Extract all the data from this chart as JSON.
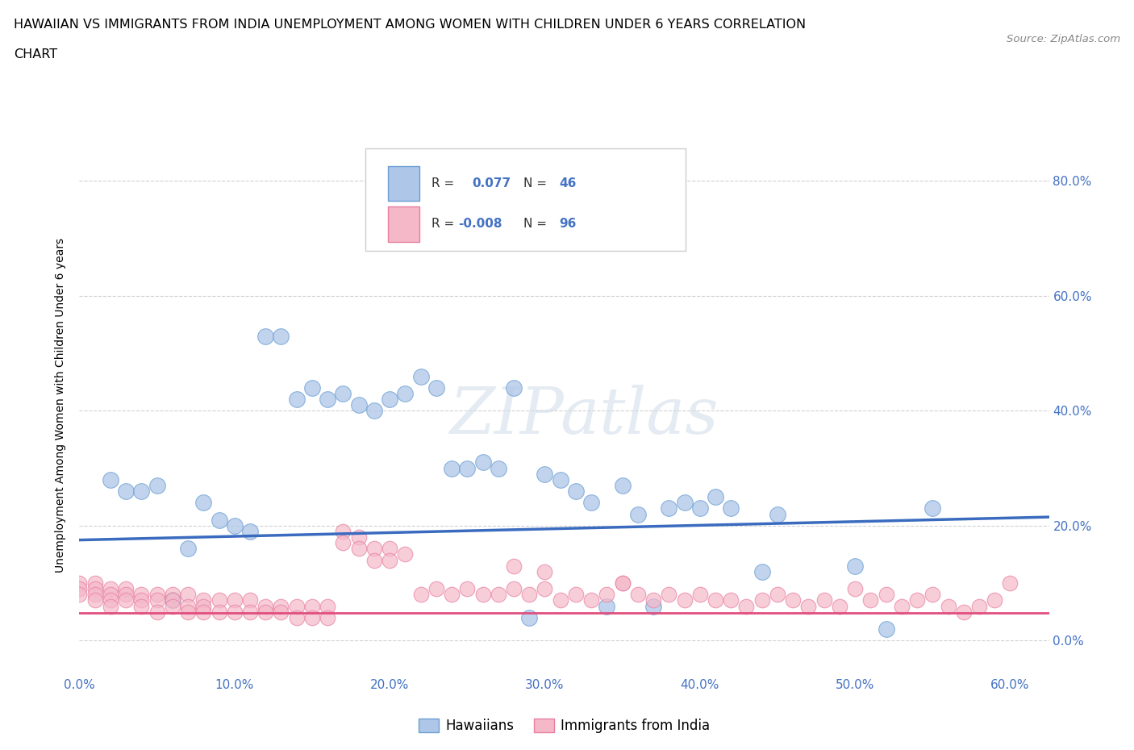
{
  "title_line1": "HAWAIIAN VS IMMIGRANTS FROM INDIA UNEMPLOYMENT AMONG WOMEN WITH CHILDREN UNDER 6 YEARS CORRELATION",
  "title_line2": "CHART",
  "source": "Source: ZipAtlas.com",
  "xlabel_ticks": [
    "0.0%",
    "10.0%",
    "20.0%",
    "30.0%",
    "40.0%",
    "50.0%",
    "60.0%"
  ],
  "ylabel": "Unemployment Among Women with Children Under 6 years",
  "ylabel_ticks": [
    "0.0%",
    "20.0%",
    "40.0%",
    "60.0%",
    "80.0%"
  ],
  "xmin": 0.0,
  "xmax": 0.625,
  "ymin": -0.06,
  "ymax": 0.88,
  "hawaiian_R": 0.077,
  "hawaiian_N": 46,
  "india_R": -0.008,
  "india_N": 96,
  "hawaiian_color": "#aec6e8",
  "india_color": "#f4b8c8",
  "hawaiian_edge_color": "#6b9fd4",
  "india_edge_color": "#e87fa0",
  "hawaiian_line_color": "#3a6bbf",
  "india_line_color": "#e05080",
  "hawaiian_line_y0": 0.175,
  "hawaiian_line_y1": 0.215,
  "india_line_y0": 0.048,
  "india_line_y1": 0.048,
  "watermark": "ZIPatlas",
  "hawaiian_x": [
    0.02,
    0.03,
    0.04,
    0.05,
    0.06,
    0.07,
    0.08,
    0.09,
    0.1,
    0.11,
    0.12,
    0.13,
    0.14,
    0.15,
    0.16,
    0.17,
    0.18,
    0.19,
    0.2,
    0.21,
    0.22,
    0.23,
    0.24,
    0.25,
    0.26,
    0.27,
    0.28,
    0.3,
    0.31,
    0.32,
    0.33,
    0.34,
    0.35,
    0.38,
    0.39,
    0.4,
    0.45,
    0.5,
    0.52,
    0.55,
    0.36,
    0.37,
    0.42,
    0.44,
    0.29,
    0.41
  ],
  "hawaiian_y": [
    0.28,
    0.26,
    0.26,
    0.27,
    0.07,
    0.16,
    0.24,
    0.21,
    0.2,
    0.19,
    0.53,
    0.53,
    0.42,
    0.44,
    0.42,
    0.43,
    0.41,
    0.4,
    0.42,
    0.43,
    0.46,
    0.44,
    0.3,
    0.3,
    0.31,
    0.3,
    0.44,
    0.29,
    0.28,
    0.26,
    0.24,
    0.06,
    0.27,
    0.23,
    0.24,
    0.23,
    0.22,
    0.13,
    0.02,
    0.23,
    0.22,
    0.06,
    0.23,
    0.12,
    0.04,
    0.25
  ],
  "india_x": [
    0.0,
    0.0,
    0.0,
    0.01,
    0.01,
    0.01,
    0.01,
    0.02,
    0.02,
    0.02,
    0.02,
    0.03,
    0.03,
    0.03,
    0.04,
    0.04,
    0.04,
    0.05,
    0.05,
    0.05,
    0.06,
    0.06,
    0.06,
    0.07,
    0.07,
    0.07,
    0.08,
    0.08,
    0.08,
    0.09,
    0.09,
    0.1,
    0.1,
    0.11,
    0.11,
    0.12,
    0.12,
    0.13,
    0.13,
    0.14,
    0.14,
    0.15,
    0.15,
    0.16,
    0.16,
    0.17,
    0.17,
    0.18,
    0.18,
    0.19,
    0.19,
    0.2,
    0.2,
    0.21,
    0.22,
    0.23,
    0.24,
    0.25,
    0.26,
    0.27,
    0.28,
    0.29,
    0.3,
    0.31,
    0.32,
    0.33,
    0.34,
    0.35,
    0.36,
    0.37,
    0.38,
    0.39,
    0.4,
    0.41,
    0.42,
    0.43,
    0.44,
    0.45,
    0.46,
    0.47,
    0.48,
    0.49,
    0.5,
    0.51,
    0.52,
    0.53,
    0.54,
    0.55,
    0.56,
    0.57,
    0.58,
    0.59,
    0.6,
    0.28,
    0.3,
    0.35
  ],
  "india_y": [
    0.1,
    0.09,
    0.08,
    0.1,
    0.09,
    0.08,
    0.07,
    0.09,
    0.08,
    0.07,
    0.06,
    0.09,
    0.08,
    0.07,
    0.08,
    0.07,
    0.06,
    0.08,
    0.07,
    0.05,
    0.08,
    0.07,
    0.06,
    0.08,
    0.06,
    0.05,
    0.07,
    0.06,
    0.05,
    0.07,
    0.05,
    0.07,
    0.05,
    0.07,
    0.05,
    0.06,
    0.05,
    0.06,
    0.05,
    0.06,
    0.04,
    0.06,
    0.04,
    0.06,
    0.04,
    0.19,
    0.17,
    0.18,
    0.16,
    0.16,
    0.14,
    0.16,
    0.14,
    0.15,
    0.08,
    0.09,
    0.08,
    0.09,
    0.08,
    0.08,
    0.09,
    0.08,
    0.09,
    0.07,
    0.08,
    0.07,
    0.08,
    0.1,
    0.08,
    0.07,
    0.08,
    0.07,
    0.08,
    0.07,
    0.07,
    0.06,
    0.07,
    0.08,
    0.07,
    0.06,
    0.07,
    0.06,
    0.09,
    0.07,
    0.08,
    0.06,
    0.07,
    0.08,
    0.06,
    0.05,
    0.06,
    0.07,
    0.1,
    0.13,
    0.12,
    0.1
  ]
}
